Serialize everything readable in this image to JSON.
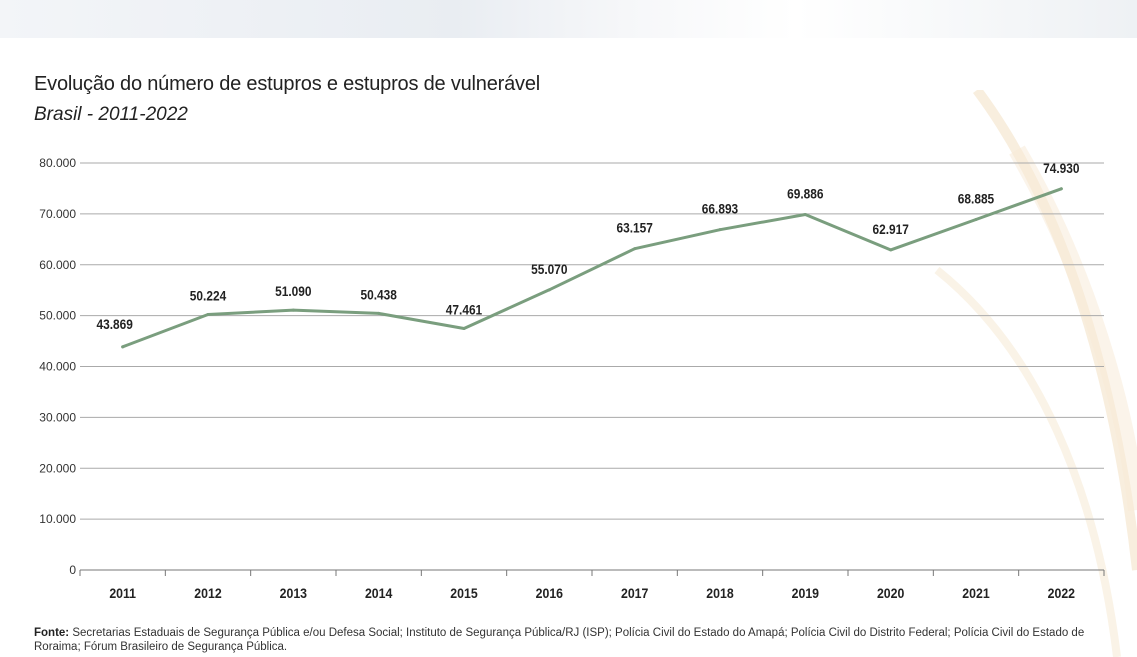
{
  "title": "Evolução do número de estupros e estupros de vulnerável",
  "subtitle": "Brasil - 2011-2022",
  "source_label": "Fonte:",
  "source_text": "Secretarias Estaduais de Segurança Pública e/ou Defesa Social; Instituto de Segurança Pública/RJ (ISP); Polícia Civil do Estado do Amapá; Polícia Civil do Distrito Federal; Polícia Civil do Estado de Roraima; Fórum Brasileiro de Segurança Pública.",
  "colors": {
    "line": "#7a9e7e",
    "grid": "#aaaaaa",
    "text": "#222222"
  },
  "chart_data": {
    "type": "line",
    "title": "Evolução do número de estupros e estupros de vulnerável",
    "subtitle": "Brasil - 2011-2022",
    "xlabel": "",
    "ylabel": "",
    "categories": [
      "2011",
      "2012",
      "2013",
      "2014",
      "2015",
      "2016",
      "2017",
      "2018",
      "2019",
      "2020",
      "2021",
      "2022"
    ],
    "values": [
      43869,
      50224,
      51090,
      50438,
      47461,
      55070,
      63157,
      66893,
      69886,
      62917,
      68885,
      74930
    ],
    "data_labels": [
      "43.869",
      "50.224",
      "51.090",
      "50.438",
      "47.461",
      "55.070",
      "63.157",
      "66.893",
      "69.886",
      "62.917",
      "68.885",
      "74.930"
    ],
    "y_ticks": [
      0,
      10000,
      20000,
      30000,
      40000,
      50000,
      60000,
      70000,
      80000
    ],
    "y_tick_labels": [
      "0",
      "10.000",
      "20.000",
      "30.000",
      "40.000",
      "50.000",
      "60.000",
      "70.000",
      "80.000"
    ],
    "ylim": [
      0,
      80000
    ],
    "grid": true,
    "legend": "none"
  }
}
